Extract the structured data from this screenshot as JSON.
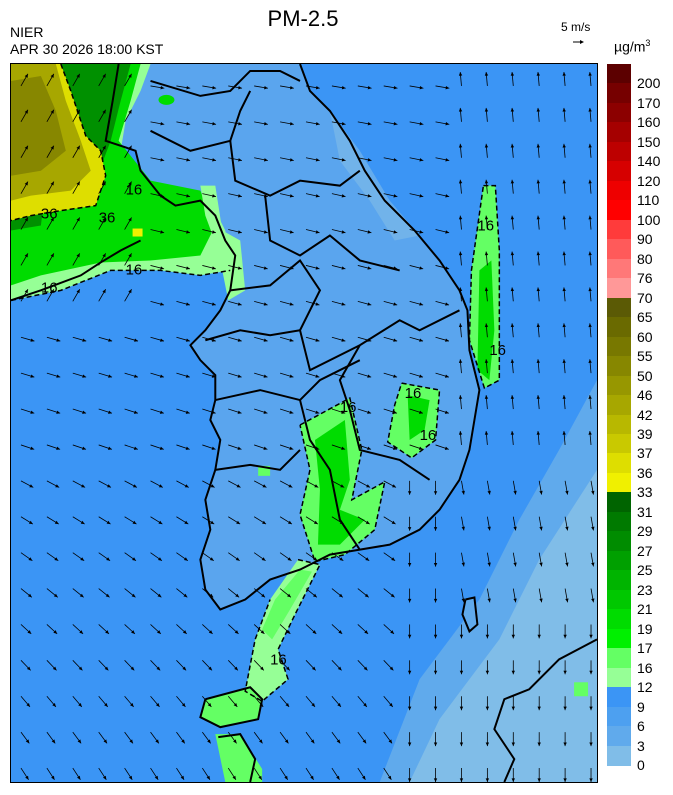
{
  "header": {
    "title": "PM-2.5",
    "organization": "NIER",
    "datetime": "APR 30 2026 18:00 KST",
    "wind_scale_label": "5 m/s",
    "unit_base": "µg/m",
    "unit_exp": "3"
  },
  "colorbar": {
    "labels": [
      "200",
      "170",
      "160",
      "150",
      "140",
      "120",
      "110",
      "100",
      "90",
      "80",
      "76",
      "70",
      "65",
      "60",
      "55",
      "50",
      "46",
      "42",
      "39",
      "37",
      "36",
      "33",
      "31",
      "29",
      "27",
      "25",
      "23",
      "21",
      "19",
      "17",
      "16",
      "12",
      "9",
      "6",
      "3",
      "0"
    ],
    "colors": [
      "#5c0000",
      "#760000",
      "#8c0000",
      "#a50000",
      "#bd0000",
      "#d60000",
      "#ee0000",
      "#ff0000",
      "#ff3b3b",
      "#ff5a5a",
      "#ff7878",
      "#ff9898",
      "#5b5a05",
      "#6a6a00",
      "#787800",
      "#878700",
      "#979700",
      "#a7a700",
      "#b8b800",
      "#c9c900",
      "#dede00",
      "#f0f000",
      "#006400",
      "#007a00",
      "#008c00",
      "#00a000",
      "#00b400",
      "#00c800",
      "#00dc00",
      "#00f000",
      "#64ff64",
      "#96ff96",
      "#3b95f5",
      "#4da0f0",
      "#60aaec",
      "#80bde8",
      "#96c9e6"
    ]
  },
  "map": {
    "contour_labels": [
      "16",
      "16",
      "16",
      "16",
      "16",
      "16",
      "16",
      "16",
      "36",
      "36",
      "16"
    ],
    "colors": {
      "sea": "#3b95f5",
      "land": "#5aa5ee",
      "light_sea": "#80bde8",
      "lightest_sea": "#96c9e6",
      "light_green": "#96ff96",
      "green": "#64ff64",
      "bright_green": "#00e000",
      "dark_green": "#009000",
      "yellow": "#dede00",
      "olive": "#a7a700",
      "dark_olive": "#878700"
    }
  }
}
